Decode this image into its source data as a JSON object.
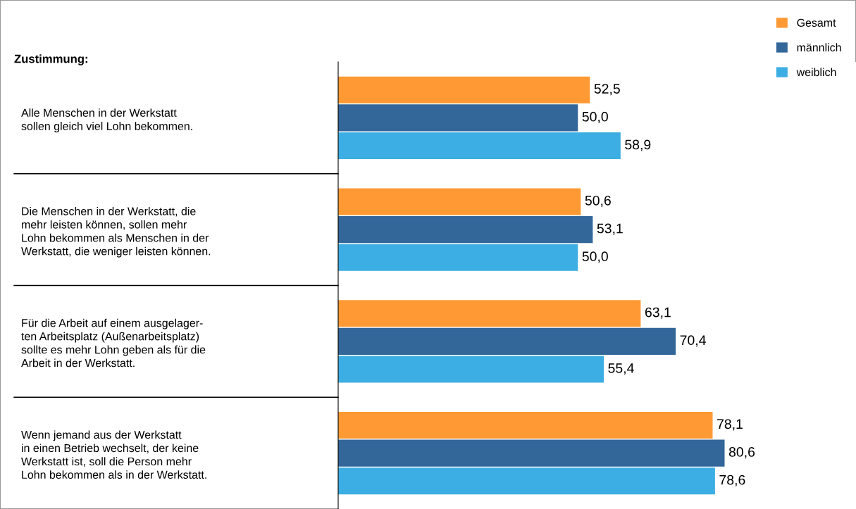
{
  "chart_data": {
    "type": "bar",
    "orientation": "horizontal",
    "legend": "top right",
    "grid": false,
    "annotations": [
      "Zustimmung:"
    ],
    "categories": [
      "Alle Menschen in der Werkstatt\nsollen gleich viel Lohn bekommen.",
      "Die Menschen in der Werkstatt, die\nmehr leisten können, sollen mehr\nLohn bekommen als Menschen in der\nWerkstatt, die weniger leisten können.",
      "Für die Arbeit auf einem ausgelager-\nten Arbeitsplatz (Außenarbeitsplatz)\nsollte es mehr Lohn geben als für die\nArbeit in der Werkstatt.",
      "Wenn jemand aus der Werkstatt\nin einen Betrieb wechselt, der keine\nWerkstatt ist, soll die Person mehr\nLohn bekommen als in der Werkstatt."
    ],
    "series": [
      {
        "name": "Gesamt",
        "color": "#ff9933",
        "values": [
          52.5,
          50.6,
          63.1,
          78.1
        ],
        "value_labels": [
          "52,5",
          "50,6",
          "63,1",
          "78,1"
        ]
      },
      {
        "name": "männlich",
        "color": "#336699",
        "values": [
          50.0,
          53.1,
          70.4,
          80.6
        ],
        "value_labels": [
          "50,0",
          "53,1",
          "70,4",
          "80,6"
        ]
      },
      {
        "name": "weiblich",
        "color": "#3daee3",
        "values": [
          58.9,
          50.0,
          55.4,
          78.6
        ],
        "value_labels": [
          "58,9",
          "50,0",
          "55,4",
          "78,6"
        ]
      }
    ]
  }
}
